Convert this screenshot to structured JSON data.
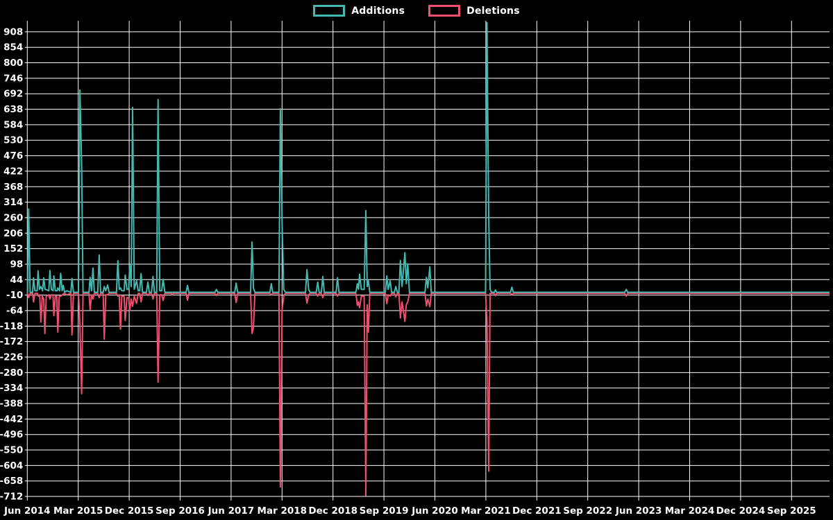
{
  "legend": {
    "additions_label": "Additions",
    "deletions_label": "Deletions"
  },
  "colors": {
    "background": "#000000",
    "grid": "#ffffff",
    "text": "#ffffff",
    "additions": "#45b8b0",
    "deletions": "#f0506e"
  },
  "chart_data": {
    "type": "line",
    "title": "",
    "xlabel": "",
    "ylabel": "",
    "grid": true,
    "legend_position": "top-center",
    "x_unit": "months since Jun 2014 (ticks every 9 months)",
    "x_tick_labels": [
      "Jun 2014",
      "Mar 2015",
      "Dec 2015",
      "Sep 2016",
      "Jun 2017",
      "Mar 2018",
      "Dec 2018",
      "Sep 2019",
      "Jun 2020",
      "Mar 2021",
      "Dec 2021",
      "Sep 2022",
      "Jun 2023",
      "Mar 2024",
      "Dec 2024",
      "Sep 2025"
    ],
    "x_tick_positions": [
      0,
      9,
      18,
      27,
      36,
      45,
      54,
      63,
      72,
      81,
      90,
      99,
      108,
      117,
      126,
      135
    ],
    "xlim": [
      0,
      141.7
    ],
    "y_tick_values": [
      908,
      854,
      800,
      746,
      692,
      638,
      584,
      530,
      476,
      422,
      368,
      314,
      260,
      206,
      152,
      98,
      44,
      -10,
      -64,
      -118,
      -172,
      -226,
      -280,
      -334,
      -388,
      -442,
      -496,
      -550,
      -604,
      -658,
      -712
    ],
    "ylim": [
      -715,
      947
    ],
    "series": [
      {
        "name": "Additions",
        "color_key": "additions",
        "points": [
          [
            0.05,
            0
          ],
          [
            0.25,
            290
          ],
          [
            0.5,
            0
          ],
          [
            0.95,
            0
          ],
          [
            1.1,
            50
          ],
          [
            1.35,
            5
          ],
          [
            1.75,
            5
          ],
          [
            1.9,
            75
          ],
          [
            2.15,
            10
          ],
          [
            2.4,
            20
          ],
          [
            2.7,
            5
          ],
          [
            2.9,
            50
          ],
          [
            3.15,
            10
          ],
          [
            3.5,
            8
          ],
          [
            3.8,
            5
          ],
          [
            4.0,
            76
          ],
          [
            4.25,
            10
          ],
          [
            4.55,
            5
          ],
          [
            4.7,
            57
          ],
          [
            4.95,
            5
          ],
          [
            5.25,
            5
          ],
          [
            5.4,
            15
          ],
          [
            5.7,
            5
          ],
          [
            5.9,
            66
          ],
          [
            6.15,
            5
          ],
          [
            6.35,
            24
          ],
          [
            6.6,
            0
          ],
          [
            7.0,
            5
          ],
          [
            7.7,
            0
          ],
          [
            7.9,
            48
          ],
          [
            8.15,
            0
          ],
          [
            9.05,
            0
          ],
          [
            9.3,
            705
          ],
          [
            9.6,
            445
          ],
          [
            9.85,
            0
          ],
          [
            10.9,
            0
          ],
          [
            11.1,
            52
          ],
          [
            11.35,
            5
          ],
          [
            11.6,
            84
          ],
          [
            11.85,
            0
          ],
          [
            12.45,
            0
          ],
          [
            12.7,
            130
          ],
          [
            12.95,
            0
          ],
          [
            13.4,
            0
          ],
          [
            13.6,
            20
          ],
          [
            13.85,
            5
          ],
          [
            14.2,
            25
          ],
          [
            14.45,
            0
          ],
          [
            15.75,
            0
          ],
          [
            16.0,
            110
          ],
          [
            16.25,
            10
          ],
          [
            16.45,
            15
          ],
          [
            16.7,
            5
          ],
          [
            17.1,
            5
          ],
          [
            17.3,
            60
          ],
          [
            17.6,
            10
          ],
          [
            17.9,
            10
          ],
          [
            18.1,
            95
          ],
          [
            18.35,
            20
          ],
          [
            18.6,
            645
          ],
          [
            18.9,
            10
          ],
          [
            19.3,
            40
          ],
          [
            19.6,
            5
          ],
          [
            19.85,
            5
          ],
          [
            20.1,
            65
          ],
          [
            20.35,
            0
          ],
          [
            21.05,
            0
          ],
          [
            21.3,
            35
          ],
          [
            21.55,
            0
          ],
          [
            21.95,
            0
          ],
          [
            22.2,
            55
          ],
          [
            22.45,
            0
          ],
          [
            22.85,
            0
          ],
          [
            23.1,
            672
          ],
          [
            23.4,
            5
          ],
          [
            23.75,
            5
          ],
          [
            24.0,
            45
          ],
          [
            24.3,
            0
          ],
          [
            28.05,
            0
          ],
          [
            28.3,
            24
          ],
          [
            28.55,
            0
          ],
          [
            33.15,
            0
          ],
          [
            33.4,
            10
          ],
          [
            33.65,
            0
          ],
          [
            36.65,
            0
          ],
          [
            36.9,
            32
          ],
          [
            37.15,
            0
          ],
          [
            39.45,
            0
          ],
          [
            39.7,
            175
          ],
          [
            39.95,
            15
          ],
          [
            40.2,
            0
          ],
          [
            42.85,
            0
          ],
          [
            43.1,
            30
          ],
          [
            43.35,
            0
          ],
          [
            44.45,
            0
          ],
          [
            44.7,
            640
          ],
          [
            45.0,
            250
          ],
          [
            45.3,
            10
          ],
          [
            45.6,
            0
          ],
          [
            49.15,
            0
          ],
          [
            49.4,
            79
          ],
          [
            49.7,
            10
          ],
          [
            49.95,
            0
          ],
          [
            51.05,
            0
          ],
          [
            51.3,
            35
          ],
          [
            51.55,
            0
          ],
          [
            51.95,
            0
          ],
          [
            52.2,
            55
          ],
          [
            52.45,
            0
          ],
          [
            54.55,
            0
          ],
          [
            54.8,
            51
          ],
          [
            55.05,
            0
          ],
          [
            58.05,
            0
          ],
          [
            58.3,
            30
          ],
          [
            58.5,
            10
          ],
          [
            58.7,
            63
          ],
          [
            59.0,
            10
          ],
          [
            59.5,
            10
          ],
          [
            59.8,
            285
          ],
          [
            60.05,
            20
          ],
          [
            60.25,
            40
          ],
          [
            60.5,
            0
          ],
          [
            63.25,
            0
          ],
          [
            63.5,
            57
          ],
          [
            63.75,
            10
          ],
          [
            64.1,
            40
          ],
          [
            64.35,
            0
          ],
          [
            64.85,
            0
          ],
          [
            65.1,
            20
          ],
          [
            65.35,
            0
          ],
          [
            65.65,
            0
          ],
          [
            65.9,
            111
          ],
          [
            66.2,
            20
          ],
          [
            66.7,
            138
          ],
          [
            66.95,
            30
          ],
          [
            67.2,
            99
          ],
          [
            67.5,
            0
          ],
          [
            70.25,
            0
          ],
          [
            70.5,
            52
          ],
          [
            70.75,
            15
          ],
          [
            71.1,
            89
          ],
          [
            71.35,
            0
          ],
          [
            80.95,
            0
          ],
          [
            81.2,
            940
          ],
          [
            81.5,
            265
          ],
          [
            81.75,
            10
          ],
          [
            82.0,
            0
          ],
          [
            82.5,
            0
          ],
          [
            82.7,
            8
          ],
          [
            82.9,
            0
          ],
          [
            85.35,
            0
          ],
          [
            85.6,
            18
          ],
          [
            85.85,
            0
          ],
          [
            105.55,
            0
          ],
          [
            105.8,
            10
          ],
          [
            106.05,
            0
          ],
          [
            141.6,
            0
          ]
        ]
      },
      {
        "name": "Deletions",
        "color_key": "deletions",
        "points": [
          [
            0.05,
            0
          ],
          [
            0.25,
            -15
          ],
          [
            0.5,
            0
          ],
          [
            0.95,
            0
          ],
          [
            1.1,
            -30
          ],
          [
            1.35,
            0
          ],
          [
            1.8,
            0
          ],
          [
            1.95,
            -10
          ],
          [
            2.2,
            -5
          ],
          [
            2.4,
            -100
          ],
          [
            2.65,
            -10
          ],
          [
            2.9,
            -20
          ],
          [
            3.1,
            -140
          ],
          [
            3.35,
            -10
          ],
          [
            3.8,
            -5
          ],
          [
            4.0,
            -20
          ],
          [
            4.25,
            -5
          ],
          [
            4.55,
            -5
          ],
          [
            4.7,
            -78
          ],
          [
            4.95,
            -10
          ],
          [
            5.2,
            -10
          ],
          [
            5.4,
            -135
          ],
          [
            5.65,
            -10
          ],
          [
            5.9,
            -10
          ],
          [
            6.2,
            -5
          ],
          [
            6.5,
            0
          ],
          [
            7.0,
            -5
          ],
          [
            7.7,
            0
          ],
          [
            7.9,
            -145
          ],
          [
            8.15,
            0
          ],
          [
            9.05,
            0
          ],
          [
            9.3,
            -105
          ],
          [
            9.6,
            -350
          ],
          [
            9.85,
            0
          ],
          [
            10.9,
            0
          ],
          [
            11.1,
            -57
          ],
          [
            11.35,
            -5
          ],
          [
            11.6,
            -20
          ],
          [
            11.85,
            0
          ],
          [
            12.45,
            0
          ],
          [
            12.7,
            -15
          ],
          [
            12.95,
            0
          ],
          [
            13.4,
            0
          ],
          [
            13.6,
            -160
          ],
          [
            13.85,
            -5
          ],
          [
            14.2,
            -5
          ],
          [
            14.45,
            0
          ],
          [
            15.75,
            0
          ],
          [
            16.0,
            -10
          ],
          [
            16.25,
            -5
          ],
          [
            16.45,
            -125
          ],
          [
            16.7,
            -10
          ],
          [
            17.1,
            -10
          ],
          [
            17.3,
            -95
          ],
          [
            17.6,
            -15
          ],
          [
            17.9,
            -15
          ],
          [
            18.1,
            -60
          ],
          [
            18.35,
            -20
          ],
          [
            18.6,
            -45
          ],
          [
            18.9,
            -10
          ],
          [
            19.3,
            -35
          ],
          [
            19.6,
            0
          ],
          [
            19.85,
            0
          ],
          [
            20.1,
            -30
          ],
          [
            20.35,
            0
          ],
          [
            21.05,
            0
          ],
          [
            21.3,
            -8
          ],
          [
            21.55,
            0
          ],
          [
            21.95,
            0
          ],
          [
            22.2,
            -20
          ],
          [
            22.45,
            0
          ],
          [
            22.85,
            0
          ],
          [
            23.1,
            -310
          ],
          [
            23.4,
            -5
          ],
          [
            23.75,
            -5
          ],
          [
            24.0,
            -25
          ],
          [
            24.3,
            0
          ],
          [
            25.45,
            0
          ],
          [
            25.6,
            -5
          ],
          [
            25.8,
            0
          ],
          [
            28.05,
            0
          ],
          [
            28.3,
            -24
          ],
          [
            28.55,
            0
          ],
          [
            33.15,
            0
          ],
          [
            33.4,
            -8
          ],
          [
            33.65,
            0
          ],
          [
            36.65,
            0
          ],
          [
            36.9,
            -32
          ],
          [
            37.15,
            0
          ],
          [
            39.45,
            0
          ],
          [
            39.7,
            -140
          ],
          [
            39.95,
            -120
          ],
          [
            40.2,
            0
          ],
          [
            42.85,
            0
          ],
          [
            43.1,
            -5
          ],
          [
            43.35,
            0
          ],
          [
            44.45,
            0
          ],
          [
            44.7,
            -675
          ],
          [
            45.0,
            -60
          ],
          [
            45.3,
            -10
          ],
          [
            45.6,
            0
          ],
          [
            49.15,
            0
          ],
          [
            49.4,
            -34
          ],
          [
            49.7,
            -5
          ],
          [
            49.95,
            0
          ],
          [
            51.05,
            0
          ],
          [
            51.3,
            -10
          ],
          [
            51.55,
            0
          ],
          [
            51.95,
            0
          ],
          [
            52.2,
            -15
          ],
          [
            52.45,
            0
          ],
          [
            54.55,
            0
          ],
          [
            54.8,
            -10
          ],
          [
            55.05,
            0
          ],
          [
            58.05,
            0
          ],
          [
            58.3,
            -42
          ],
          [
            58.5,
            -30
          ],
          [
            58.7,
            -50
          ],
          [
            59.0,
            -10
          ],
          [
            59.5,
            -10
          ],
          [
            59.8,
            -705
          ],
          [
            60.05,
            -40
          ],
          [
            60.25,
            -135
          ],
          [
            60.5,
            0
          ],
          [
            63.25,
            0
          ],
          [
            63.5,
            -36
          ],
          [
            63.75,
            -5
          ],
          [
            64.1,
            -10
          ],
          [
            64.35,
            0
          ],
          [
            64.85,
            0
          ],
          [
            65.1,
            -12
          ],
          [
            65.35,
            0
          ],
          [
            65.65,
            0
          ],
          [
            65.9,
            -86
          ],
          [
            66.2,
            -30
          ],
          [
            66.7,
            -98
          ],
          [
            66.95,
            -40
          ],
          [
            67.2,
            -30
          ],
          [
            67.5,
            0
          ],
          [
            70.25,
            0
          ],
          [
            70.5,
            -44
          ],
          [
            70.75,
            -20
          ],
          [
            71.1,
            -47
          ],
          [
            71.35,
            0
          ],
          [
            80.95,
            0
          ],
          [
            81.2,
            -90
          ],
          [
            81.5,
            -620
          ],
          [
            81.75,
            0
          ],
          [
            82.5,
            0
          ],
          [
            82.7,
            -8
          ],
          [
            82.9,
            0
          ],
          [
            85.35,
            0
          ],
          [
            85.6,
            -4
          ],
          [
            85.85,
            0
          ],
          [
            105.55,
            0
          ],
          [
            105.8,
            -10
          ],
          [
            106.05,
            0
          ],
          [
            141.6,
            0
          ]
        ]
      }
    ]
  }
}
